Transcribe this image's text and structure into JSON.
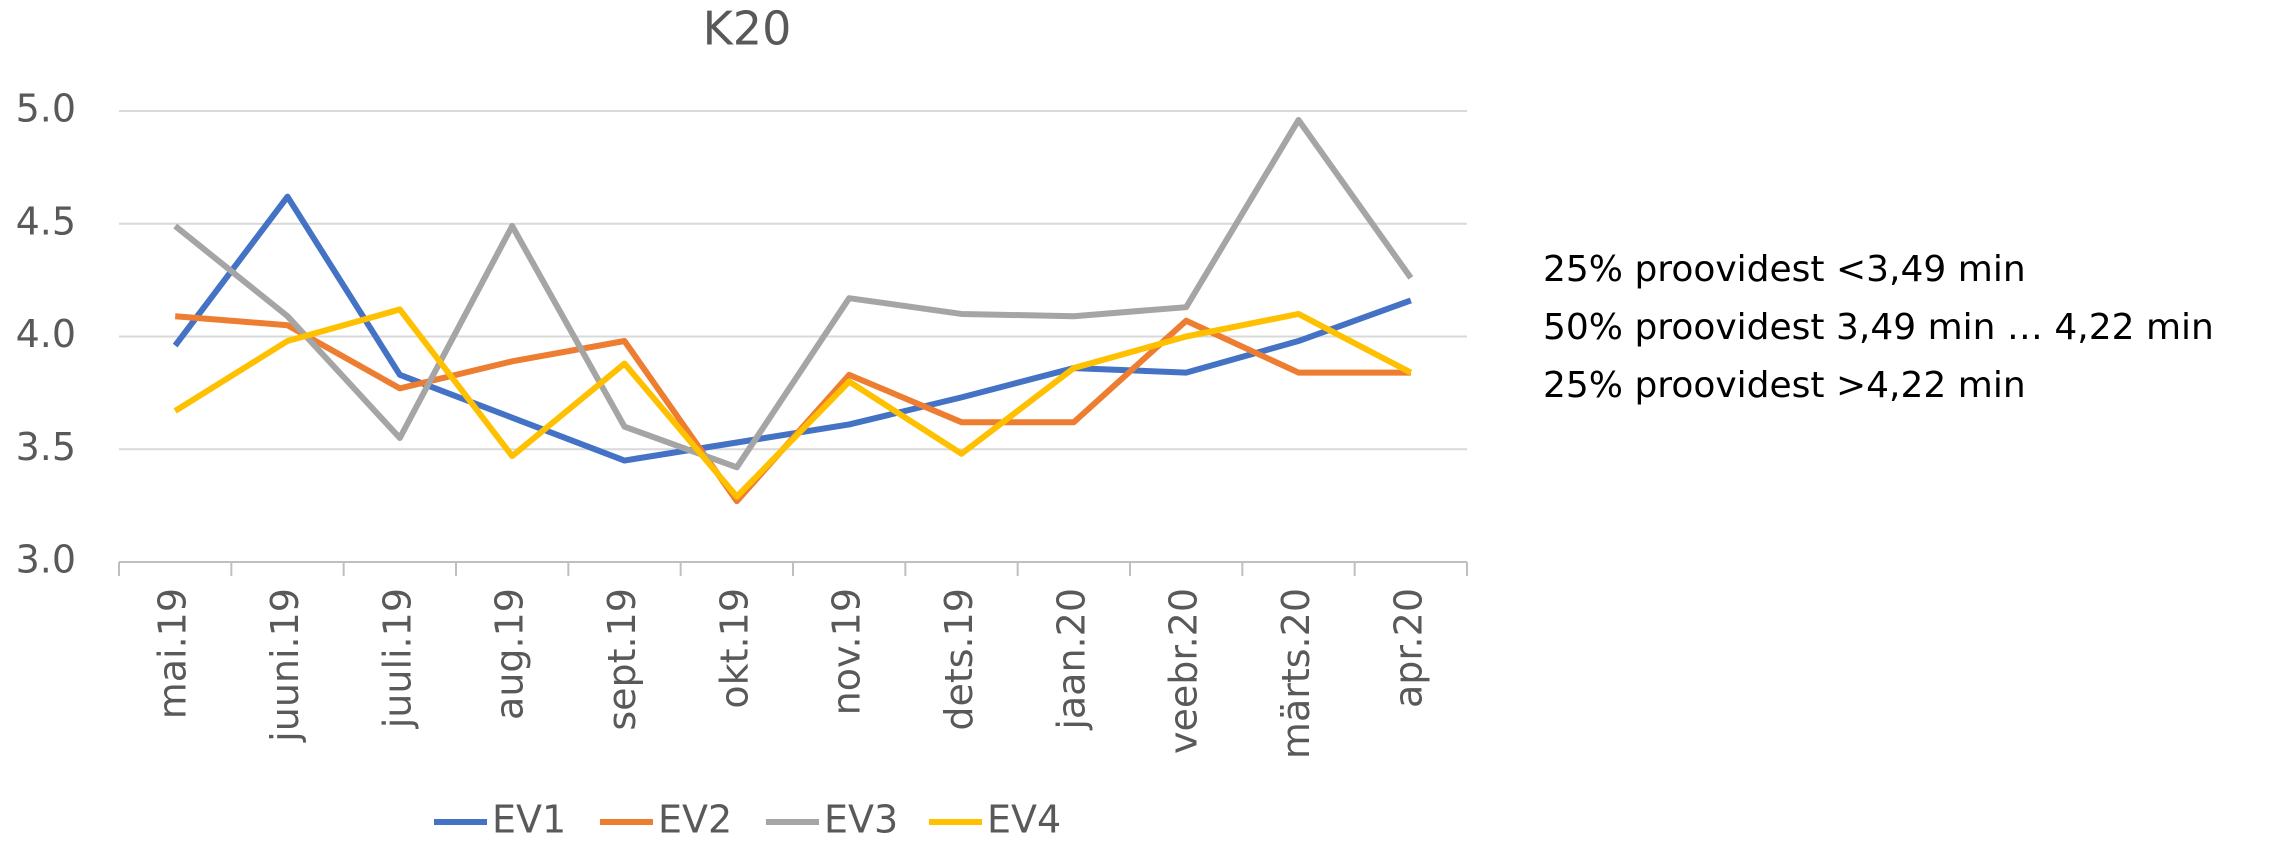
{
  "chart_data": {
    "type": "line",
    "title": "K20",
    "categories": [
      "mai.19",
      "juuni.19",
      "juuli.19",
      "aug.19",
      "sept.19",
      "okt.19",
      "nov.19",
      "dets.19",
      "jaan.20",
      "veebr.20",
      "märts.20",
      "apr.20"
    ],
    "series": [
      {
        "name": "EV1",
        "color": "#4472c4",
        "values": [
          3.96,
          4.62,
          3.83,
          3.64,
          3.45,
          3.53,
          3.61,
          3.73,
          3.86,
          3.84,
          3.98,
          4.16
        ]
      },
      {
        "name": "EV2",
        "color": "#ed7d31",
        "values": [
          4.09,
          4.05,
          3.77,
          3.89,
          3.98,
          3.27,
          3.83,
          3.62,
          3.62,
          4.07,
          3.84,
          3.84
        ]
      },
      {
        "name": "EV3",
        "color": "#a5a5a5",
        "values": [
          4.49,
          4.09,
          3.55,
          4.49,
          3.6,
          3.42,
          4.17,
          4.1,
          4.09,
          4.13,
          4.96,
          4.26
        ]
      },
      {
        "name": "EV4",
        "color": "#ffc000",
        "values": [
          3.67,
          3.98,
          4.12,
          3.47,
          3.88,
          3.29,
          3.8,
          3.48,
          3.86,
          4.0,
          4.1,
          3.84
        ]
      }
    ],
    "ylim": [
      3.0,
      5.0
    ],
    "yticks": [
      {
        "value": 3.0,
        "label": "3.0"
      },
      3.5,
      {
        "value": 4.0,
        "label": "4.0"
      },
      4.5,
      {
        "value": 5.0,
        "label": "5.0"
      }
    ],
    "grid": true,
    "legend": "bottom",
    "annotations": [
      "25% proovidest <3,49 min",
      "50% proovidest 3,49 min … 4,22 min",
      "25% proovidest >4,22 min"
    ]
  }
}
